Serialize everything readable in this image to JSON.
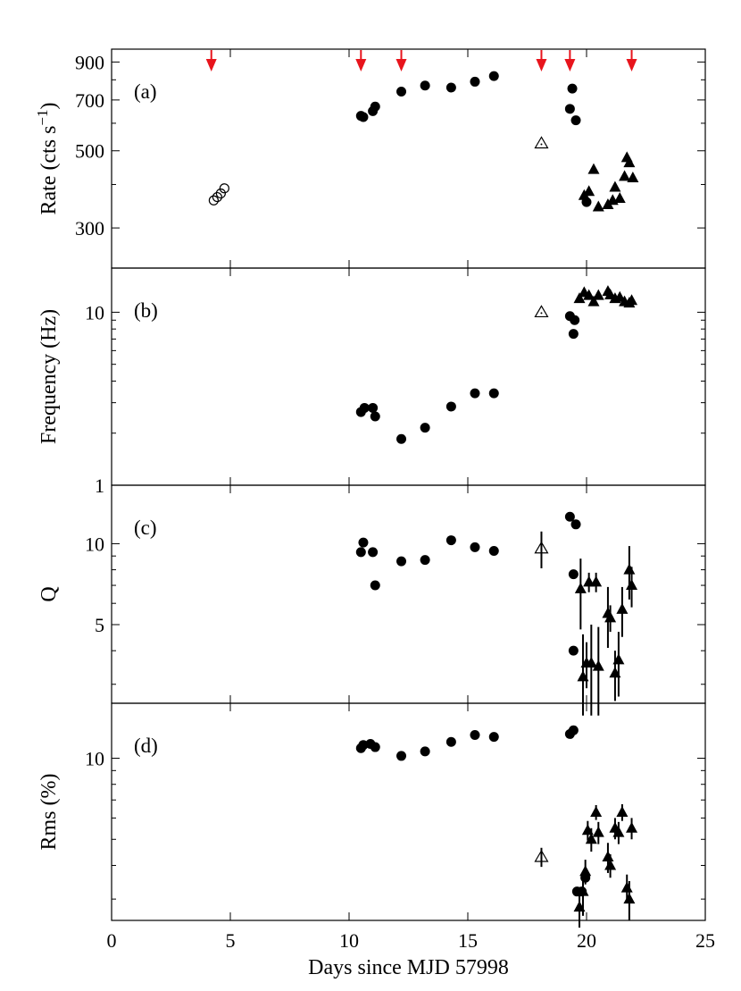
{
  "colors": {
    "arrow": "#e8141c",
    "ink": "#000000",
    "background": "#ffffff"
  },
  "chart_data": {
    "type": "scatter",
    "xlabel": "Days since MJD 57998",
    "xlim": [
      0,
      25
    ],
    "xticks": [
      0,
      5,
      10,
      15,
      20,
      25
    ],
    "grid": false,
    "legend": "none",
    "arrows_at_days": [
      4.2,
      10.5,
      12.2,
      18.1,
      19.3,
      21.9
    ],
    "panels": [
      {
        "label": "(a)",
        "ylabel": "Rate (cts s",
        "ylabel_sup": "−1",
        "ylabel_close": ")",
        "yscale": "log",
        "ylim": [
          230,
          980
        ],
        "yticks": [
          {
            "v": 300,
            "t": "300"
          },
          {
            "v": 500,
            "t": "500"
          },
          {
            "v": 700,
            "t": "700"
          },
          {
            "v": 900,
            "t": "900"
          }
        ],
        "minor_ticks": [
          400,
          600,
          800
        ],
        "series": [
          {
            "marker": "open-circle",
            "points": [
              [
                4.3,
                360
              ],
              [
                4.45,
                368
              ],
              [
                4.6,
                377
              ],
              [
                4.75,
                390
              ]
            ]
          },
          {
            "marker": "filled-circle",
            "points": [
              [
                10.5,
                630
              ],
              [
                10.6,
                625
              ],
              [
                11.0,
                650
              ],
              [
                11.1,
                670
              ],
              [
                12.2,
                740
              ],
              [
                13.2,
                770
              ],
              [
                14.3,
                760
              ],
              [
                15.3,
                790
              ],
              [
                16.1,
                820
              ],
              [
                19.3,
                660
              ],
              [
                19.4,
                755
              ],
              [
                19.55,
                612
              ],
              [
                20.0,
                356
              ]
            ]
          },
          {
            "marker": "filled-triangle",
            "points": [
              [
                19.9,
                372
              ],
              [
                20.1,
                382
              ],
              [
                20.3,
                442
              ],
              [
                20.5,
                345
              ],
              [
                20.9,
                350
              ],
              [
                21.1,
                360
              ],
              [
                21.2,
                393
              ],
              [
                21.4,
                365
              ],
              [
                21.6,
                422
              ],
              [
                21.7,
                478
              ],
              [
                21.8,
                462
              ],
              [
                21.95,
                418
              ]
            ]
          },
          {
            "marker": "open-triangle",
            "points": [
              [
                18.1,
                525
              ]
            ]
          }
        ]
      },
      {
        "label": "(b)",
        "ylabel": "Frequency (Hz)",
        "yscale": "log",
        "ylim": [
          1,
          18
        ],
        "yticks": [
          {
            "v": 1,
            "t": "1"
          },
          {
            "v": 10,
            "t": "10"
          }
        ],
        "minor_ticks": [
          2,
          3,
          4,
          5,
          6,
          7,
          8,
          9
        ],
        "series": [
          {
            "marker": "filled-circle",
            "points": [
              [
                10.5,
                2.65
              ],
              [
                10.65,
                2.8
              ],
              [
                11.0,
                2.8
              ],
              [
                11.1,
                2.5
              ],
              [
                12.2,
                1.85
              ],
              [
                13.2,
                2.15
              ],
              [
                14.3,
                2.85
              ],
              [
                15.3,
                3.4
              ],
              [
                16.1,
                3.4
              ],
              [
                19.3,
                9.5
              ],
              [
                19.45,
                7.5
              ],
              [
                19.5,
                9.0
              ]
            ]
          },
          {
            "marker": "filled-triangle",
            "points": [
              [
                19.7,
                12.0
              ],
              [
                19.9,
                13.0
              ],
              [
                20.1,
                12.5
              ],
              [
                20.3,
                11.5
              ],
              [
                20.5,
                12.5
              ],
              [
                20.9,
                13.2
              ],
              [
                21.0,
                12.6
              ],
              [
                21.2,
                12.0
              ],
              [
                21.4,
                12.2
              ],
              [
                21.6,
                11.5
              ],
              [
                21.8,
                11.3
              ],
              [
                21.9,
                11.7
              ]
            ]
          },
          {
            "marker": "open-triangle",
            "points": [
              [
                18.1,
                10.0
              ]
            ]
          }
        ]
      },
      {
        "label": "(c)",
        "ylabel": "Q",
        "yscale": "log",
        "ylim": [
          2.55,
          16.5
        ],
        "yticks": [
          {
            "v": 5,
            "t": "5"
          },
          {
            "v": 10,
            "t": "10"
          }
        ],
        "minor_ticks": [
          3,
          4,
          6,
          7,
          8,
          9
        ],
        "series": [
          {
            "marker": "filled-circle",
            "points": [
              [
                10.5,
                9.3
              ],
              [
                10.6,
                10.1
              ],
              [
                11.0,
                9.3
              ],
              [
                11.1,
                7.0
              ],
              [
                12.2,
                8.6
              ],
              [
                13.2,
                8.7
              ],
              [
                14.3,
                10.3
              ],
              [
                15.3,
                9.7
              ],
              [
                16.1,
                9.4
              ],
              [
                19.3,
                12.6
              ],
              [
                19.45,
                4.0
              ],
              [
                19.45,
                7.7
              ],
              [
                19.55,
                11.8
              ]
            ]
          },
          {
            "marker": "filled-triangle",
            "errors": [
              2.0,
              1.4,
              0.7,
              0.6,
              1.4,
              0.6,
              1.4,
              1.4,
              0.6,
              0.7,
              1.0,
              1.2,
              1.8,
              1.2
            ],
            "points": [
              [
                19.75,
                6.8
              ],
              [
                19.85,
                3.2
              ],
              [
                20.0,
                3.6
              ],
              [
                20.1,
                7.2
              ],
              [
                20.2,
                3.6
              ],
              [
                20.4,
                7.2
              ],
              [
                20.5,
                3.5
              ],
              [
                20.9,
                5.5
              ],
              [
                21.0,
                5.3
              ],
              [
                21.2,
                3.3
              ],
              [
                21.35,
                3.7
              ],
              [
                21.5,
                5.7
              ],
              [
                21.8,
                8.0
              ],
              [
                21.9,
                7.0
              ]
            ]
          },
          {
            "marker": "open-triangle",
            "errors": [
              1.5
            ],
            "points": [
              [
                18.1,
                9.6
              ]
            ]
          }
        ]
      },
      {
        "label": "(d)",
        "ylabel": "Rms (%)",
        "yscale": "log",
        "ylim": [
          2.5,
          16
        ],
        "yticks": [
          {
            "v": 10,
            "t": "10"
          }
        ],
        "minor_ticks": [
          3,
          4,
          5,
          6,
          7,
          8,
          9
        ],
        "series": [
          {
            "marker": "filled-circle",
            "points": [
              [
                10.5,
                10.9
              ],
              [
                10.6,
                11.2
              ],
              [
                10.9,
                11.3
              ],
              [
                11.1,
                11.0
              ],
              [
                12.2,
                10.2
              ],
              [
                13.2,
                10.6
              ],
              [
                14.3,
                11.5
              ],
              [
                15.3,
                12.2
              ],
              [
                16.1,
                12.0
              ],
              [
                19.3,
                12.3
              ],
              [
                19.45,
                12.7
              ],
              [
                19.6,
                3.2
              ],
              [
                19.8,
                3.2
              ],
              [
                19.95,
                3.6
              ]
            ]
          },
          {
            "marker": "filled-triangle",
            "errors": [
              0.45,
              0.6,
              0.4,
              0.45,
              0.5,
              0.4,
              0.5,
              0.55,
              0.4,
              0.5,
              0.5,
              0.45,
              0.4,
              0.5,
              0.5
            ],
            "points": [
              [
                19.7,
                2.8
              ],
              [
                19.85,
                3.2
              ],
              [
                19.95,
                3.8
              ],
              [
                20.05,
                5.4
              ],
              [
                20.2,
                5.0
              ],
              [
                20.4,
                6.3
              ],
              [
                20.5,
                5.3
              ],
              [
                20.9,
                4.3
              ],
              [
                21.0,
                4.0
              ],
              [
                21.2,
                5.5
              ],
              [
                21.35,
                5.3
              ],
              [
                21.5,
                6.3
              ],
              [
                21.7,
                3.3
              ],
              [
                21.8,
                3.0
              ],
              [
                21.9,
                5.5
              ]
            ]
          },
          {
            "marker": "open-triangle",
            "errors": [
              0.35
            ],
            "points": [
              [
                18.1,
                4.3
              ]
            ]
          }
        ]
      }
    ]
  }
}
